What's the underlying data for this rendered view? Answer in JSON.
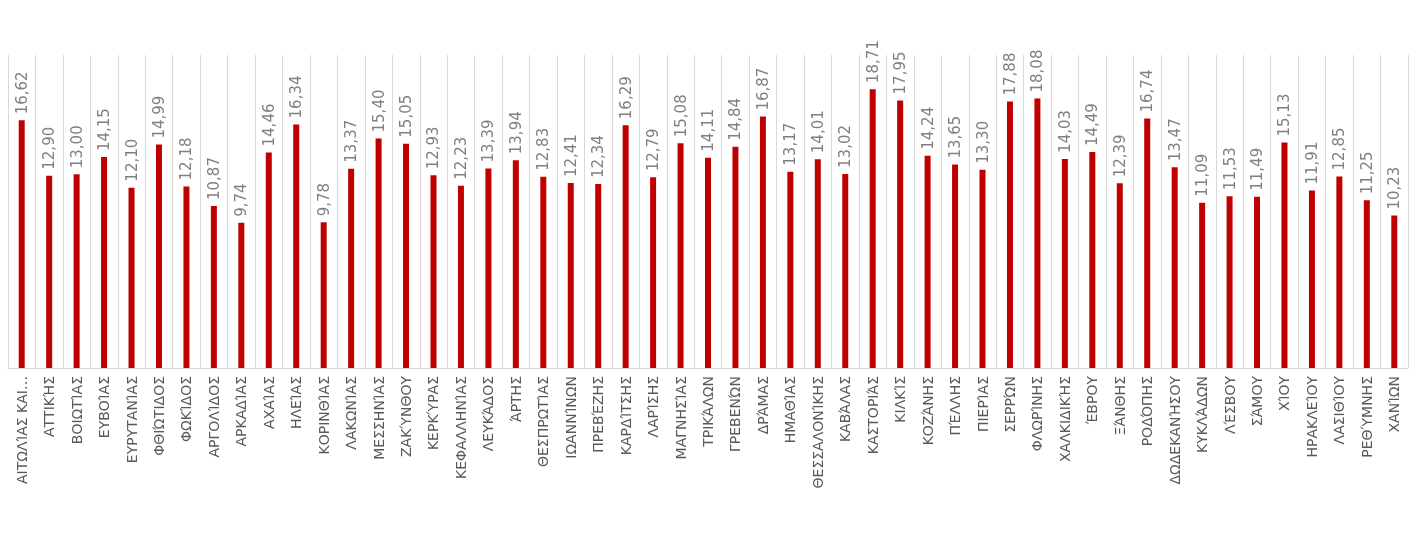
{
  "chart_data": {
    "type": "bar",
    "categories": [
      "ΑΙΤΩΛΊΑΣ ΚΑΙ…",
      "ΑΤΤΙΚΉΣ",
      "ΒΟΙΩΤΊΑΣ",
      "ΕΥΒΟΊΑΣ",
      "ΕΥΡΥΤΑΝΊΑΣ",
      "ΦΘΙΏΤΙΔΟΣ",
      "ΦΩΚΊΔΟΣ",
      "ΑΡΓΟΛΊΔΟΣ",
      "ΑΡΚΑΔΊΑΣ",
      "ΑΧΑΊΑΣ",
      "ΗΛΕΊΑΣ",
      "ΚΟΡΙΝΘΊΑΣ",
      "ΛΑΚΩΝΊΑΣ",
      "ΜΕΣΣΗΝΊΑΣ",
      "ΖΑΚΎΝΘΟΥ",
      "ΚΕΡΚΎΡΑΣ",
      "ΚΕΦΑΛΛΗΝΊΑΣ",
      "ΛΕΥΚΆΔΟΣ",
      "ΆΡΤΗΣ",
      "ΘΕΣΠΡΩΤΊΑΣ",
      "ΙΩΑΝΝΊΝΩΝ",
      "ΠΡΕΒΈΖΗΣ",
      "ΚΑΡΔΊΤΣΗΣ",
      "ΛΑΡΊΣΗΣ",
      "ΜΑΓΝΗΣΊΑΣ",
      "ΤΡΙΚΆΛΩΝ",
      "ΓΡΕΒΕΝΏΝ",
      "ΔΡΆΜΑΣ",
      "ΗΜΑΘΊΑΣ",
      "ΘΕΣΣΑΛΟΝΊΚΗΣ",
      "ΚΑΒΆΛΑΣ",
      "ΚΑΣΤΟΡΙΆΣ",
      "ΚΙΛΚΊΣ",
      "ΚΟΖΆΝΗΣ",
      "ΠΈΛΛΗΣ",
      "ΠΙΕΡΊΑΣ",
      "ΣΕΡΡΏΝ",
      "ΦΛΩΡΊΝΗΣ",
      "ΧΑΛΚΙΔΙΚΉΣ",
      "ΈΒΡΟΥ",
      "ΞΆΝΘΗΣ",
      "ΡΟΔΌΠΗΣ",
      "ΔΩΔΕΚΑΝΉΣΟΥ",
      "ΚΥΚΛΆΔΩΝ",
      "ΛΈΣΒΟΥ",
      "ΣΆΜΟΥ",
      "ΧΊΟΥ",
      "ΗΡΑΚΛΕΊΟΥ",
      "ΛΑΣΙΘΊΟΥ",
      "ΡΕΘΎΜΝΗΣ",
      "ΧΑΝΊΩΝ"
    ],
    "values": [
      16.62,
      12.9,
      13.0,
      14.15,
      12.1,
      14.99,
      12.18,
      10.87,
      9.74,
      14.46,
      16.34,
      9.78,
      13.37,
      15.4,
      15.05,
      12.93,
      12.23,
      13.39,
      13.94,
      12.83,
      12.41,
      12.34,
      16.29,
      12.79,
      15.08,
      14.11,
      14.84,
      16.87,
      13.17,
      14.01,
      13.02,
      18.71,
      17.95,
      14.24,
      13.65,
      13.3,
      17.88,
      18.08,
      14.03,
      14.49,
      12.39,
      16.74,
      13.47,
      11.09,
      11.53,
      11.49,
      15.13,
      11.91,
      12.85,
      11.25,
      10.23
    ],
    "value_labels": [
      "16,62",
      "12,90",
      "13,00",
      "14,15",
      "12,10",
      "14,99",
      "12,18",
      "10,87",
      "9,74",
      "14,46",
      "16,34",
      "9,78",
      "13,37",
      "15,40",
      "15,05",
      "12,93",
      "12,23",
      "13,39",
      "13,94",
      "12,83",
      "12,41",
      "12,34",
      "16,29",
      "12,79",
      "15,08",
      "14,11",
      "14,84",
      "16,87",
      "13,17",
      "14,01",
      "13,02",
      "18,71",
      "17,95",
      "14,24",
      "13,65",
      "13,30",
      "17,88",
      "18,08",
      "14,03",
      "14,49",
      "12,39",
      "16,74",
      "13,47",
      "11,09",
      "11,53",
      "11,49",
      "15,13",
      "11,91",
      "12,85",
      "11,25",
      "10,23"
    ],
    "color": "#c00000",
    "grid": "x"
  }
}
